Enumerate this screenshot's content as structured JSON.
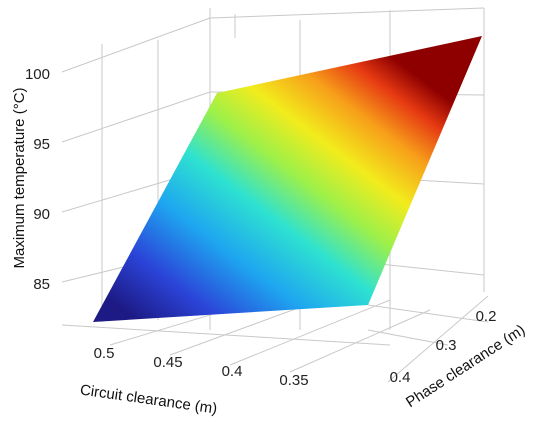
{
  "chart_data": {
    "type": "surface3d",
    "zlabel": "Maximum temperature (°C)",
    "xlabel": "Circuit clearance (m)",
    "ylabel": "Phase clearance (m)",
    "x_ticks": [
      "0.5",
      "0.45",
      "0.4",
      "0.35"
    ],
    "y_ticks": [
      "0.2",
      "0.3",
      "0.4"
    ],
    "z_ticks": [
      "85",
      "90",
      "95",
      "100"
    ],
    "zlim": [
      82,
      103
    ],
    "colormap": "jet",
    "grid": true,
    "surface_corners": [
      {
        "circuit_clearance": 0.5,
        "phase_clearance": 0.4,
        "max_temperature": 82.5
      },
      {
        "circuit_clearance": 0.3,
        "phase_clearance": 0.4,
        "max_temperature": 84.0
      },
      {
        "circuit_clearance": 0.3,
        "phase_clearance": 0.2,
        "max_temperature": 102.5
      },
      {
        "circuit_clearance": 0.5,
        "phase_clearance": 0.2,
        "max_temperature": 98.5
      }
    ]
  }
}
